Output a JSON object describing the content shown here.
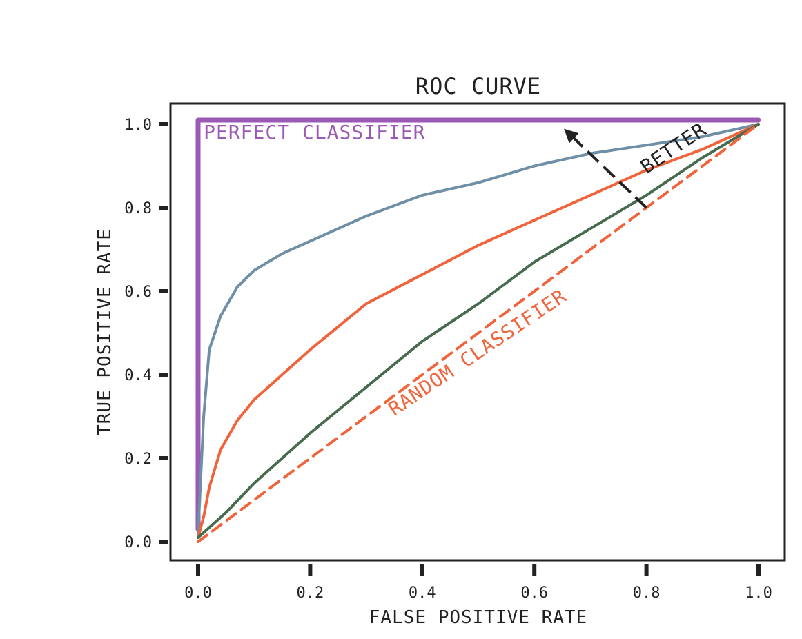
{
  "chart_data": {
    "type": "line",
    "title": "ROC CURVE",
    "xlabel": "FALSE POSITIVE RATE",
    "ylabel": "TRUE POSITIVE RATE",
    "xlim": [
      0,
      1
    ],
    "ylim": [
      0,
      1
    ],
    "xticks": [
      0.0,
      0.2,
      0.4,
      0.6,
      0.8,
      1.0
    ],
    "yticks": [
      0.0,
      0.2,
      0.4,
      0.6,
      0.8,
      1.0
    ],
    "xtick_labels": [
      "0.0",
      "0.2",
      "0.4",
      "0.6",
      "0.8",
      "1.0"
    ],
    "ytick_labels": [
      "0.0",
      "0.2",
      "0.4",
      "0.6",
      "0.8",
      "1.0"
    ],
    "grid": false,
    "series": [
      {
        "key": "perfect",
        "color": "#9b59b6",
        "dashed": false,
        "x": [
          0.0,
          0.0,
          1.0
        ],
        "y": [
          0.03,
          1.01,
          1.01
        ]
      },
      {
        "key": "blue",
        "color": "#6f8fa6",
        "dashed": false,
        "x": [
          0.0,
          0.01,
          0.02,
          0.04,
          0.07,
          0.1,
          0.15,
          0.2,
          0.3,
          0.4,
          0.5,
          0.6,
          0.7,
          0.8,
          0.9,
          1.0
        ],
        "y": [
          0.02,
          0.3,
          0.46,
          0.54,
          0.61,
          0.65,
          0.69,
          0.72,
          0.78,
          0.83,
          0.86,
          0.9,
          0.93,
          0.95,
          0.97,
          1.0
        ]
      },
      {
        "key": "orange",
        "color": "#f1643b",
        "dashed": false,
        "x": [
          0.0,
          0.01,
          0.02,
          0.04,
          0.07,
          0.1,
          0.15,
          0.2,
          0.3,
          0.4,
          0.5,
          0.6,
          0.7,
          0.8,
          0.9,
          1.0
        ],
        "y": [
          0.01,
          0.06,
          0.13,
          0.22,
          0.29,
          0.34,
          0.4,
          0.46,
          0.57,
          0.64,
          0.71,
          0.77,
          0.83,
          0.89,
          0.94,
          1.0
        ]
      },
      {
        "key": "green",
        "color": "#466b4d",
        "dashed": false,
        "x": [
          0.0,
          0.05,
          0.1,
          0.2,
          0.3,
          0.4,
          0.5,
          0.6,
          0.7,
          0.8,
          0.9,
          1.0
        ],
        "y": [
          0.01,
          0.07,
          0.14,
          0.26,
          0.37,
          0.48,
          0.57,
          0.67,
          0.75,
          0.83,
          0.92,
          1.0
        ]
      },
      {
        "key": "random",
        "color": "#f1643b",
        "dashed": true,
        "x": [
          0.0,
          1.0
        ],
        "y": [
          0.0,
          1.0
        ]
      }
    ],
    "annotations": [
      {
        "key": "perfect",
        "text": "PERFECT CLASSIFIER",
        "color": "#9b59b6",
        "x": 0.01,
        "y": 0.965,
        "rotation": 0
      },
      {
        "key": "random",
        "text": "RANDOM CLASSIFIER",
        "color": "#f1643b",
        "x": 0.35,
        "y": 0.3,
        "rotation": -34
      },
      {
        "key": "better",
        "text": "BETTER",
        "color": "#222222",
        "x": 0.8,
        "y": 0.88,
        "rotation": -34
      }
    ],
    "arrow": {
      "from": [
        0.8,
        0.8
      ],
      "to": [
        0.66,
        0.98
      ],
      "color": "#222222"
    }
  }
}
